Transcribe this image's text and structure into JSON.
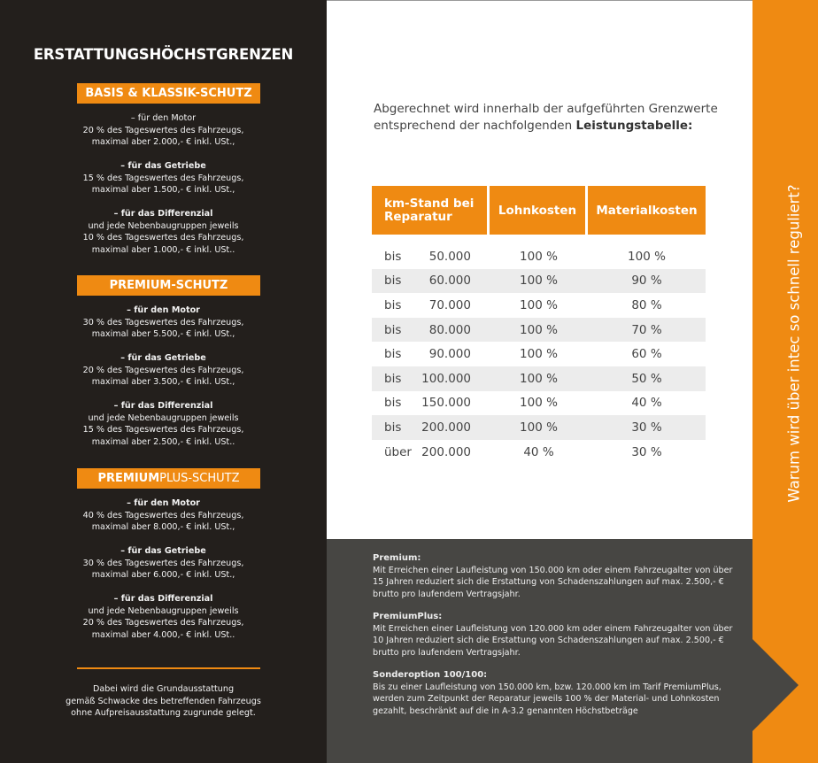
{
  "left": {
    "title": "ERSTATTUNGSHÖCHSTGRENZEN",
    "sections": [
      {
        "badge": "BASIS & KLASSIK-SCHUTZ",
        "items": [
          {
            "head": "–  für den Motor",
            "lines": [
              "20 % des Tageswertes des Fahrzeugs,",
              "maximal aber 2.000,- € inkl. USt.,"
            ]
          },
          {
            "head": "–  für das Getriebe",
            "lines": [
              "15 % des Tageswertes des Fahrzeugs,",
              "maximal aber 1.500,- € inkl. USt.,"
            ]
          },
          {
            "head": "–  für das Differenzial",
            "lines": [
              "und jede Nebenbaugruppen jeweils",
              "10 % des Tageswertes des Fahrzeugs,",
              "maximal aber 1.000,- € inkl. USt.."
            ]
          }
        ]
      },
      {
        "badge": "PREMIUM-SCHUTZ",
        "items": [
          {
            "head": "–  für den Motor",
            "lines": [
              "30 % des Tageswertes des Fahrzeugs,",
              "maximal aber 5.500,- € inkl. USt.,"
            ]
          },
          {
            "head": "–  für das Getriebe",
            "lines": [
              "20 % des Tageswertes des Fahrzeugs,",
              "maximal aber 3.500,- € inkl. USt.,"
            ]
          },
          {
            "head": "–  für das Differenzial",
            "lines": [
              "und jede Nebenbaugruppen jeweils",
              "15 % des Tageswertes des Fahrzeugs,",
              "maximal aber 2.500,- € inkl. USt.."
            ]
          }
        ]
      },
      {
        "badge_bold": "PREMIUM",
        "badge_light": "PLUS-SCHUTZ",
        "items": [
          {
            "head": "–  für den Motor",
            "lines": [
              "40 % des Tageswertes des Fahrzeugs,",
              "maximal aber 8.000,- € inkl. USt.,"
            ]
          },
          {
            "head": "–  für das Getriebe",
            "lines": [
              "30 % des Tageswertes des Fahrzeugs,",
              "maximal aber 6.000,- € inkl. USt.,"
            ]
          },
          {
            "head": "–  für das Differenzial",
            "lines": [
              "und jede Nebenbaugruppen jeweils",
              "20 % des Tageswertes des Fahrzeugs,",
              "maximal aber 4.000,- € inkl. USt.."
            ]
          }
        ]
      }
    ],
    "footer": [
      "Dabei wird die Grundausstattung",
      "gemäß Schwacke des betreffenden Fahrzeugs",
      "ohne Aufpreisausstattung zugrunde gelegt."
    ]
  },
  "intro": {
    "line1": "Abgerechnet wird innerhalb der aufgeführten Grenzwerte",
    "line2": "entsprechend der nachfolgenden ",
    "line2_bold": "Leistungstabelle:"
  },
  "table": {
    "headers": [
      "km-Stand bei Reparatur",
      "Lohnkosten",
      "Materialkosten"
    ],
    "rows": [
      [
        "bis",
        "50.000",
        "100 %",
        "100 %"
      ],
      [
        "bis",
        "60.000",
        "100 %",
        "90 %"
      ],
      [
        "bis",
        "70.000",
        "100 %",
        "80 %"
      ],
      [
        "bis",
        "80.000",
        "100 %",
        "70 %"
      ],
      [
        "bis",
        "90.000",
        "100 %",
        "60 %"
      ],
      [
        "bis",
        "100.000",
        "100 %",
        "50 %"
      ],
      [
        "bis",
        "150.000",
        "100 %",
        "40 %"
      ],
      [
        "bis",
        "200.000",
        "100 %",
        "30 %"
      ],
      [
        "über",
        "200.000",
        "40 %",
        "30 %"
      ]
    ]
  },
  "notes": [
    {
      "title": "Premium:",
      "text": "Mit Erreichen einer Laufleistung von 150.000 km oder einem Fahrzeugalter von über 15 Jahren reduziert sich die Erstattung von Schadenszahlungen auf max. 2.500,- € brutto pro laufendem Vertragsjahr."
    },
    {
      "title": "PremiumPlus:",
      "text": "Mit Erreichen einer Laufleistung von 120.000 km oder einem Fahrzeugalter von über 10 Jahren reduziert sich die Erstattung von Schadenszahlungen auf max. 2.500,- € brutto pro laufendem Vertragsjahr."
    },
    {
      "title": "Sonderoption 100/100:",
      "text": "Bis zu einer Laufleistung von 150.000 km, bzw. 120.000 km im Tarif PremiumPlus, werden zum Zeitpunkt der Reparatur jeweils 100 % der Material- und Lohnkosten gezahlt, beschränkt auf die in A-3.2 genannten Höchstbeträge"
    }
  ],
  "sidebar_text": "Warum wird über intec so schnell reguliert?",
  "colors": {
    "accent": "#ef8a12",
    "dark": "#231f1c",
    "grey": "#474643"
  }
}
